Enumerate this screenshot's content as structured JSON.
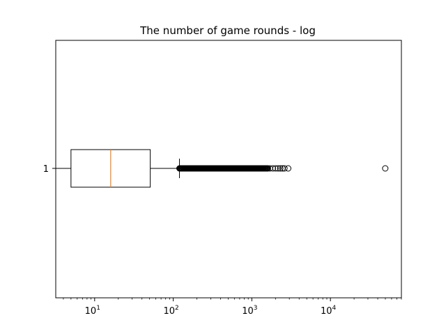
{
  "chart_data": {
    "type": "boxplot",
    "orientation": "horizontal",
    "title": "The number of game rounds - log",
    "xlabel": "",
    "ylabel": "",
    "x_scale": "log",
    "xlim": [
      3.2,
      80000
    ],
    "x_ticks": [
      {
        "value": 10,
        "label": "10",
        "exp": "1"
      },
      {
        "value": 100,
        "label": "10",
        "exp": "2"
      },
      {
        "value": 1000,
        "label": "10",
        "exp": "3"
      },
      {
        "value": 10000,
        "label": "10",
        "exp": "4"
      }
    ],
    "y_tick_labels": [
      "1"
    ],
    "grid": false,
    "series": [
      {
        "box": {
          "whisker_low": 0,
          "q1": 5,
          "median": 16,
          "q3": 51,
          "whisker_high": 120
        },
        "fliers_dense_range": [
          120,
          1600
        ],
        "fliers": [
          1700,
          1850,
          2000,
          2150,
          2300,
          2450,
          2600,
          2900,
          49856
        ]
      }
    ],
    "colors": {
      "box": "#000000",
      "median": "#ff7f0e",
      "flier_edge": "#000000"
    }
  }
}
